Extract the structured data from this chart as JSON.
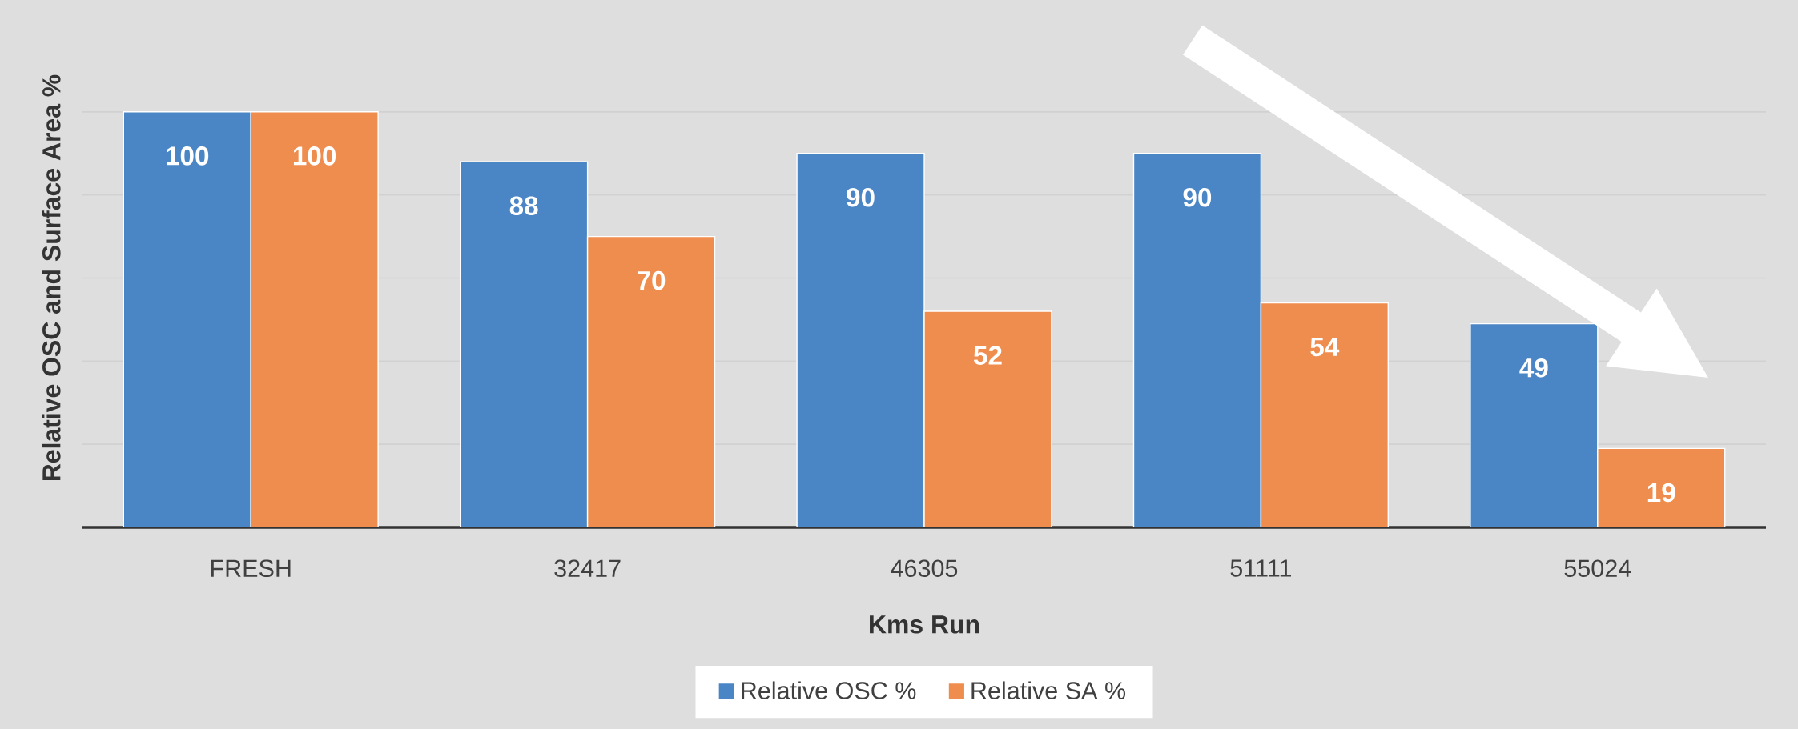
{
  "chart_data": {
    "type": "bar",
    "xlabel": "Kms Run",
    "ylabel": "Relative OSC and Surface Area %",
    "categories": [
      "FRESH",
      "32417",
      "46305",
      "51111",
      "55024"
    ],
    "series": [
      {
        "name": "Relative OSC %",
        "color": "#4a86c5",
        "values": [
          100,
          88,
          90,
          90,
          49
        ]
      },
      {
        "name": "Relative SA %",
        "color": "#ef8d4e",
        "values": [
          100,
          70,
          52,
          54,
          19
        ]
      }
    ],
    "data_labels": true,
    "yticks": [
      {
        "value": 0,
        "label": null
      },
      {
        "value": 20,
        "label": null
      },
      {
        "value": 40,
        "label": null
      },
      {
        "value": 60,
        "label": null
      },
      {
        "value": 80,
        "label": null
      },
      {
        "value": 100,
        "label": null
      }
    ],
    "grid": "y",
    "legend": "bottom",
    "tick_labels": "x"
  }
}
